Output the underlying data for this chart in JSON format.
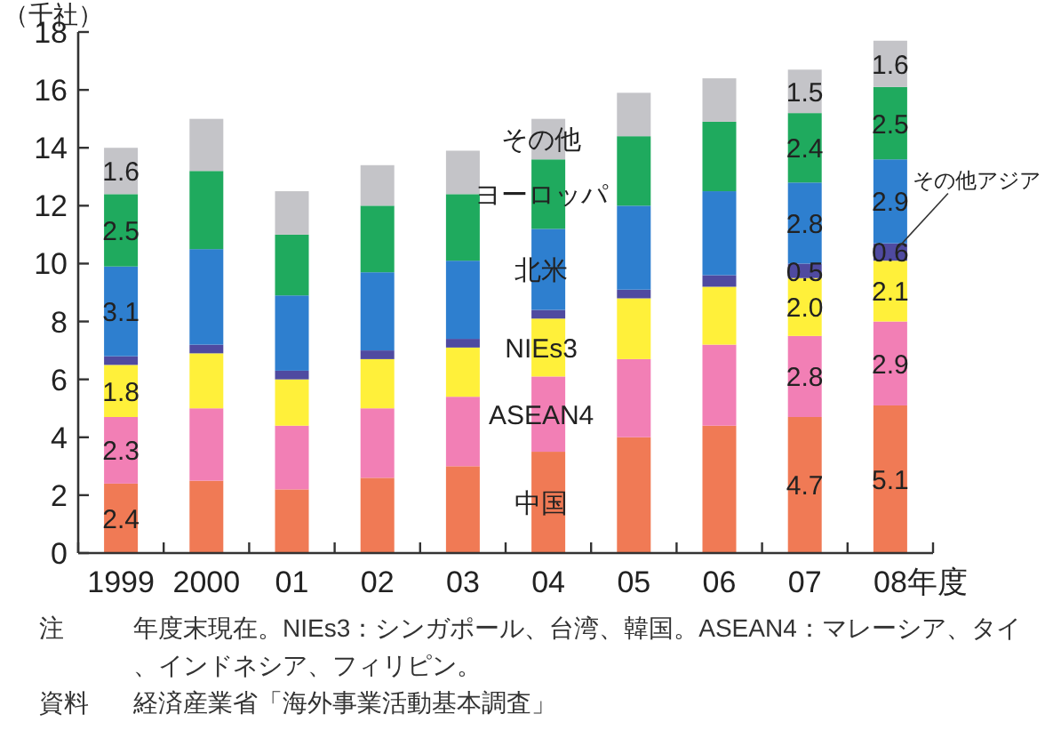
{
  "chart_data": {
    "type": "bar",
    "stacked": true,
    "ylabel": "（千社）",
    "xlabel": "年度",
    "categories": [
      "1999",
      "2000",
      "01",
      "02",
      "03",
      "04",
      "05",
      "06",
      "07",
      "08"
    ],
    "ylim": [
      0,
      18
    ],
    "yticks": [
      0,
      2,
      4,
      6,
      8,
      10,
      12,
      14,
      16,
      18
    ],
    "series": [
      {
        "name": "中国",
        "color": "#f07a55",
        "values": [
          2.4,
          2.5,
          2.2,
          2.6,
          3.0,
          3.5,
          4.0,
          4.4,
          4.7,
          5.1
        ],
        "value_labels": [
          "2.4",
          null,
          null,
          null,
          null,
          null,
          null,
          null,
          "4.7",
          "5.1"
        ]
      },
      {
        "name": "ASEAN4",
        "color": "#f27fb5",
        "values": [
          2.3,
          2.5,
          2.2,
          2.4,
          2.4,
          2.6,
          2.7,
          2.8,
          2.8,
          2.9
        ],
        "value_labels": [
          "2.3",
          null,
          null,
          null,
          null,
          null,
          null,
          null,
          "2.8",
          "2.9"
        ]
      },
      {
        "name": "NIEs3",
        "color": "#fff03a",
        "values": [
          1.8,
          1.9,
          1.6,
          1.7,
          1.7,
          2.0,
          2.1,
          2.0,
          2.0,
          2.1
        ],
        "value_labels": [
          "1.8",
          null,
          null,
          null,
          null,
          null,
          null,
          null,
          "2.0",
          "2.1"
        ]
      },
      {
        "name": "その他アジア",
        "color": "#4f4aa0",
        "values": [
          0.3,
          0.3,
          0.3,
          0.3,
          0.3,
          0.3,
          0.3,
          0.4,
          0.5,
          0.6
        ],
        "value_labels": [
          null,
          null,
          null,
          null,
          null,
          null,
          null,
          null,
          "0.5",
          "0.6"
        ]
      },
      {
        "name": "北米",
        "color": "#2e7fcf",
        "values": [
          3.1,
          3.3,
          2.6,
          2.7,
          2.7,
          2.8,
          2.9,
          2.9,
          2.8,
          2.9
        ],
        "value_labels": [
          "3.1",
          null,
          null,
          null,
          null,
          null,
          null,
          null,
          "2.8",
          "2.9"
        ]
      },
      {
        "name": "ヨーロッパ",
        "color": "#1faa5e",
        "values": [
          2.5,
          2.7,
          2.1,
          2.3,
          2.3,
          2.4,
          2.4,
          2.4,
          2.4,
          2.5
        ],
        "value_labels": [
          "2.5",
          null,
          null,
          null,
          null,
          null,
          null,
          null,
          "2.4",
          "2.5"
        ]
      },
      {
        "name": "その他",
        "color": "#c4c4c8",
        "values": [
          1.6,
          1.8,
          1.5,
          1.4,
          1.5,
          1.4,
          1.5,
          1.5,
          1.5,
          1.6
        ],
        "value_labels": [
          "1.6",
          null,
          null,
          null,
          null,
          null,
          null,
          null,
          "1.5",
          "1.6"
        ]
      }
    ],
    "annotations": [
      "注",
      "年度末現在。NIEs3：シンガポール、台湾、韓国。ASEAN4：マレーシア、タイ、インドネシア、フィリピン。",
      "資料",
      "経済産業省「海外事業活動基本調査」"
    ]
  }
}
